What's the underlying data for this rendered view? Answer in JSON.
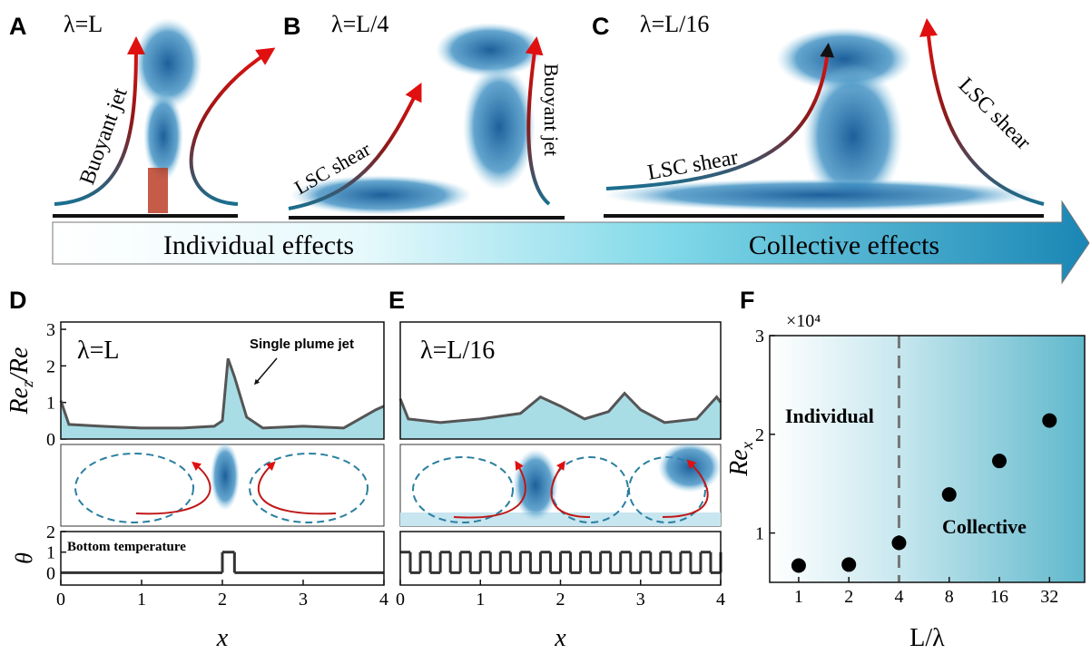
{
  "panels": {
    "A": {
      "letter": "A",
      "lambda": "λ=L",
      "jet": "Buoyant  jet"
    },
    "B": {
      "letter": "B",
      "lambda": "λ=L/4",
      "shear": "LSC shear",
      "jet": "Buoyant jet"
    },
    "C": {
      "letter": "C",
      "lambda": "λ=L/16",
      "shear_left": "LSC shear",
      "shear_right": "LSC shear"
    },
    "banner": {
      "left": "Individual effects",
      "right": "Collective effects"
    },
    "D": {
      "letter": "D",
      "lambda": "λ=L",
      "annotation": "Single plume jet",
      "bottom_label": "Bottom temperature"
    },
    "E": {
      "letter": "E",
      "lambda": "λ=L/16"
    },
    "F": {
      "letter": "F",
      "left_label": "Individual",
      "right_label": "Collective"
    }
  },
  "chart_data": [
    {
      "type": "line",
      "ylabel": {
        "main": "Re",
        "sub": "z",
        "rest": "/Re"
      },
      "color": "#555555",
      "fill_color": "#a9dde6",
      "x": [
        0,
        0.1,
        0.5,
        1,
        1.5,
        1.9,
        2.0,
        2.07,
        2.15,
        2.3,
        2.5,
        3,
        3.5,
        3.9,
        4
      ],
      "values": [
        1.05,
        0.4,
        0.35,
        0.3,
        0.3,
        0.35,
        0.5,
        2.2,
        1.7,
        0.6,
        0.3,
        0.35,
        0.3,
        0.8,
        0.9
      ],
      "xlim": [
        0,
        4
      ],
      "ylim": [
        0,
        3.2
      ],
      "yticks": [
        0,
        1,
        2,
        3
      ]
    },
    {
      "type": "step",
      "ylabel": "θ",
      "xlabel": "x",
      "color": "#333333",
      "x": [
        0,
        2,
        2.15,
        4
      ],
      "values": [
        0,
        1,
        0,
        0
      ],
      "xlim": [
        0,
        4
      ],
      "ylim": [
        -0.6,
        2
      ],
      "xticks": [
        0,
        1,
        2,
        3,
        4
      ],
      "yticks": [
        0,
        1,
        2
      ]
    },
    {
      "type": "line",
      "color": "#555555",
      "fill_color": "#a9dde6",
      "x": [
        0,
        0.1,
        0.5,
        1,
        1.5,
        1.75,
        2,
        2.3,
        2.6,
        2.8,
        3.0,
        3.3,
        3.7,
        3.95,
        4
      ],
      "values": [
        1.1,
        0.55,
        0.45,
        0.55,
        0.7,
        1.15,
        0.9,
        0.55,
        0.75,
        1.25,
        0.8,
        0.45,
        0.55,
        1.15,
        1.0
      ],
      "xlim": [
        0,
        4
      ],
      "ylim": [
        0,
        3.2
      ]
    },
    {
      "type": "step",
      "xlabel": "x",
      "color": "#333333",
      "x": [
        0,
        0.125,
        0.25,
        0.375,
        0.5,
        0.625,
        0.75,
        0.875,
        1,
        1.125,
        1.25,
        1.375,
        1.5,
        1.625,
        1.75,
        1.875,
        2,
        2.125,
        2.25,
        2.375,
        2.5,
        2.625,
        2.75,
        2.875,
        3,
        3.125,
        3.25,
        3.375,
        3.5,
        3.625,
        3.75,
        3.875,
        4
      ],
      "values": [
        1,
        0,
        1,
        0,
        1,
        0,
        1,
        0,
        1,
        0,
        1,
        0,
        1,
        0,
        1,
        0,
        1,
        0,
        1,
        0,
        1,
        0,
        1,
        0,
        1,
        0,
        1,
        0,
        1,
        0,
        1,
        0,
        1
      ],
      "xlim": [
        0,
        4
      ],
      "ylim": [
        -0.6,
        2
      ],
      "xticks": [
        0,
        1,
        2,
        3,
        4
      ]
    },
    {
      "type": "scatter",
      "ylabel": {
        "main": "Re",
        "sub": "x"
      },
      "xlabel": "L/λ",
      "y_multiplier": "×10⁴",
      "color": "#000000",
      "x": [
        1,
        2,
        4,
        8,
        16,
        32
      ],
      "values": [
        0.67,
        0.68,
        0.9,
        1.39,
        1.73,
        2.14
      ],
      "xlim": [
        0.67,
        52
      ],
      "ylim": [
        0.5,
        3
      ],
      "log_x": true,
      "xticks": [
        1,
        2,
        4,
        8,
        16,
        32
      ],
      "yticks": [
        1,
        2,
        3
      ],
      "divider_x": 4
    }
  ]
}
